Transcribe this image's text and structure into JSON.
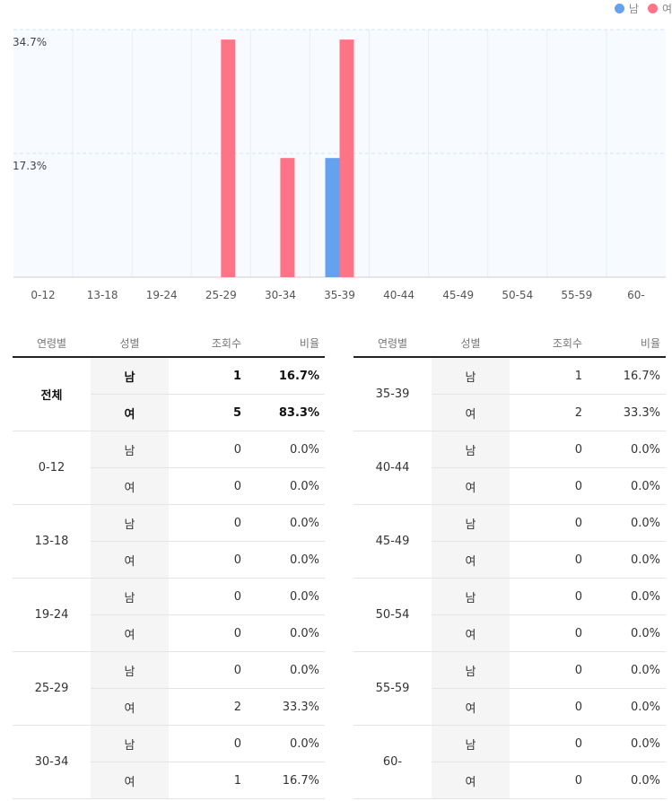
{
  "legend": {
    "male_label": "남",
    "female_label": "여",
    "male_color": "#64a1ef",
    "female_color": "#fe7386"
  },
  "chart_data": {
    "type": "bar",
    "categories": [
      "0-12",
      "13-18",
      "19-24",
      "25-29",
      "30-34",
      "35-39",
      "40-44",
      "45-49",
      "50-54",
      "55-59",
      "60-"
    ],
    "series": [
      {
        "name": "남",
        "color": "#64a1ef",
        "values": [
          0,
          0,
          0,
          0,
          0,
          16.7,
          0,
          0,
          0,
          0,
          0
        ]
      },
      {
        "name": "여",
        "color": "#fe7386",
        "values": [
          0,
          0,
          0,
          33.3,
          16.7,
          33.3,
          0,
          0,
          0,
          0,
          0
        ]
      }
    ],
    "yticks": [
      "34.7%",
      "17.3%"
    ],
    "ylim": [
      0,
      34.7
    ],
    "grid": true,
    "legend_position": "top-right"
  },
  "table": {
    "headers": {
      "age": "연령별",
      "gender": "성별",
      "views": "조회수",
      "ratio": "비율"
    },
    "left": [
      {
        "age": "전체",
        "total": true,
        "rows": [
          {
            "gender": "남",
            "views": "1",
            "ratio": "16.7%"
          },
          {
            "gender": "여",
            "views": "5",
            "ratio": "83.3%"
          }
        ]
      },
      {
        "age": "0-12",
        "rows": [
          {
            "gender": "남",
            "views": "0",
            "ratio": "0.0%"
          },
          {
            "gender": "여",
            "views": "0",
            "ratio": "0.0%"
          }
        ]
      },
      {
        "age": "13-18",
        "rows": [
          {
            "gender": "남",
            "views": "0",
            "ratio": "0.0%"
          },
          {
            "gender": "여",
            "views": "0",
            "ratio": "0.0%"
          }
        ]
      },
      {
        "age": "19-24",
        "rows": [
          {
            "gender": "남",
            "views": "0",
            "ratio": "0.0%"
          },
          {
            "gender": "여",
            "views": "0",
            "ratio": "0.0%"
          }
        ]
      },
      {
        "age": "25-29",
        "rows": [
          {
            "gender": "남",
            "views": "0",
            "ratio": "0.0%"
          },
          {
            "gender": "여",
            "views": "2",
            "ratio": "33.3%"
          }
        ]
      },
      {
        "age": "30-34",
        "rows": [
          {
            "gender": "남",
            "views": "0",
            "ratio": "0.0%"
          },
          {
            "gender": "여",
            "views": "1",
            "ratio": "16.7%"
          }
        ]
      }
    ],
    "right": [
      {
        "age": "35-39",
        "rows": [
          {
            "gender": "남",
            "views": "1",
            "ratio": "16.7%"
          },
          {
            "gender": "여",
            "views": "2",
            "ratio": "33.3%"
          }
        ]
      },
      {
        "age": "40-44",
        "rows": [
          {
            "gender": "남",
            "views": "0",
            "ratio": "0.0%"
          },
          {
            "gender": "여",
            "views": "0",
            "ratio": "0.0%"
          }
        ]
      },
      {
        "age": "45-49",
        "rows": [
          {
            "gender": "남",
            "views": "0",
            "ratio": "0.0%"
          },
          {
            "gender": "여",
            "views": "0",
            "ratio": "0.0%"
          }
        ]
      },
      {
        "age": "50-54",
        "rows": [
          {
            "gender": "남",
            "views": "0",
            "ratio": "0.0%"
          },
          {
            "gender": "여",
            "views": "0",
            "ratio": "0.0%"
          }
        ]
      },
      {
        "age": "55-59",
        "rows": [
          {
            "gender": "남",
            "views": "0",
            "ratio": "0.0%"
          },
          {
            "gender": "여",
            "views": "0",
            "ratio": "0.0%"
          }
        ]
      },
      {
        "age": "60-",
        "rows": [
          {
            "gender": "남",
            "views": "0",
            "ratio": "0.0%"
          },
          {
            "gender": "여",
            "views": "0",
            "ratio": "0.0%"
          }
        ]
      }
    ]
  }
}
